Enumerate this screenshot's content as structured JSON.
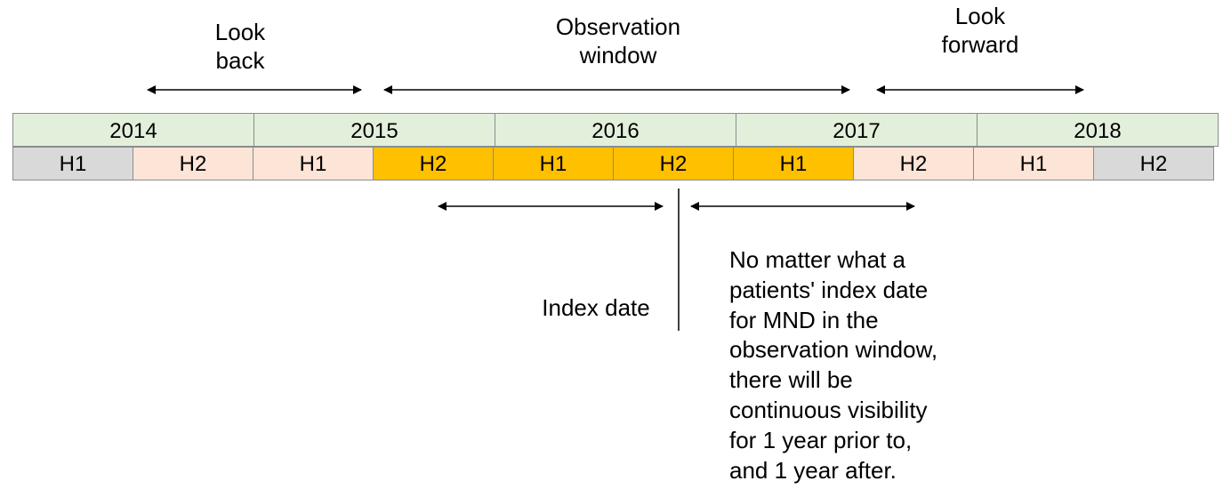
{
  "labels": {
    "look_back": [
      "Look",
      "back"
    ],
    "observation_window": [
      "Observation",
      "window"
    ],
    "look_forward": [
      "Look",
      "forward"
    ]
  },
  "years": [
    "2014",
    "2015",
    "2016",
    "2017",
    "2018"
  ],
  "halves": [
    {
      "label": "H1",
      "color": "#d9d9d9"
    },
    {
      "label": "H2",
      "color": "#fce4d6"
    },
    {
      "label": "H1",
      "color": "#fce4d6"
    },
    {
      "label": "H2",
      "color": "#ffc000"
    },
    {
      "label": "H1",
      "color": "#ffc000"
    },
    {
      "label": "H2",
      "color": "#ffc000"
    },
    {
      "label": "H1",
      "color": "#ffc000"
    },
    {
      "label": "H2",
      "color": "#fce4d6"
    },
    {
      "label": "H1",
      "color": "#fce4d6"
    },
    {
      "label": "H2",
      "color": "#d9d9d9"
    }
  ],
  "colors": {
    "year_fill": "#e2efda",
    "border": "#8c8c8c",
    "arrow": "#000000"
  },
  "index_date_label": "Index date",
  "note_lines": [
    "No matter what a",
    "patients' index date",
    "for MND in the",
    "observation window,",
    "there will be",
    "continuous visibility",
    "for 1 year prior to,",
    "and 1 year after."
  ]
}
